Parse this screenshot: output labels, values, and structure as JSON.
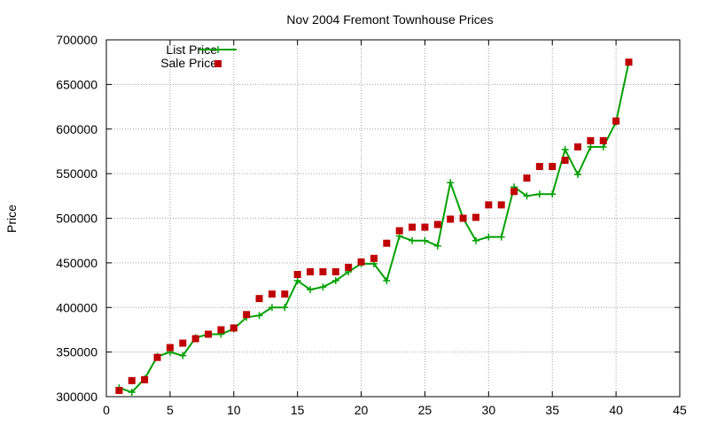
{
  "chart_data": {
    "type": "line",
    "title": "Nov 2004 Fremont Townhouse Prices",
    "xlabel": "",
    "ylabel": "Price",
    "xlim": [
      0,
      45
    ],
    "ylim": [
      300000,
      700000
    ],
    "x_ticks": [
      0,
      5,
      10,
      15,
      20,
      25,
      30,
      35,
      40,
      45
    ],
    "y_ticks": [
      300000,
      350000,
      400000,
      450000,
      500000,
      550000,
      600000,
      650000,
      700000
    ],
    "grid": true,
    "legend_position": "top-left",
    "series": [
      {
        "name": "List Price",
        "style": "line-with-plus-markers",
        "color": "#00a000",
        "x": [
          1,
          2,
          3,
          4,
          5,
          6,
          7,
          8,
          9,
          10,
          11,
          12,
          13,
          14,
          15,
          16,
          17,
          18,
          19,
          20,
          21,
          22,
          23,
          24,
          25,
          26,
          27,
          28,
          29,
          30,
          31,
          32,
          33,
          34,
          35,
          36,
          37,
          38,
          39,
          40,
          41
        ],
        "values": [
          310000,
          305000,
          320000,
          345000,
          350000,
          346000,
          366000,
          370000,
          370000,
          376000,
          389000,
          391000,
          400000,
          400000,
          430000,
          420000,
          423000,
          430000,
          440000,
          449000,
          449000,
          430000,
          480000,
          475000,
          475000,
          469000,
          540000,
          500000,
          475000,
          479000,
          479000,
          535000,
          525000,
          527000,
          527000,
          577000,
          549000,
          580000,
          580000,
          608000,
          675000
        ]
      },
      {
        "name": "Sale Price",
        "style": "square-markers",
        "color": "#c00000",
        "x": [
          1,
          2,
          3,
          4,
          5,
          6,
          7,
          8,
          9,
          10,
          11,
          12,
          13,
          14,
          15,
          16,
          17,
          18,
          19,
          20,
          21,
          22,
          23,
          24,
          25,
          26,
          27,
          28,
          29,
          30,
          31,
          32,
          33,
          34,
          35,
          36,
          37,
          38,
          39,
          40,
          41
        ],
        "values": [
          307000,
          318000,
          319000,
          344000,
          355000,
          360000,
          365000,
          370000,
          375000,
          377000,
          392000,
          410000,
          415000,
          415000,
          437000,
          440000,
          440000,
          440000,
          445000,
          451000,
          455000,
          472000,
          486000,
          490000,
          490000,
          493000,
          499000,
          500000,
          501000,
          515000,
          515000,
          530000,
          545000,
          558000,
          558000,
          565000,
          580000,
          587000,
          587000,
          609000,
          675000
        ]
      }
    ]
  }
}
